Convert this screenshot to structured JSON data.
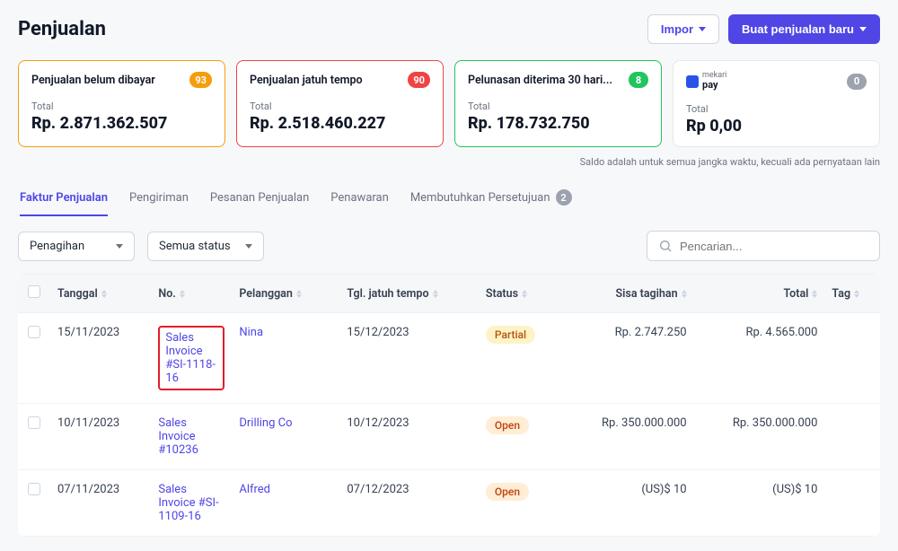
{
  "header": {
    "title": "Penjualan",
    "import_label": "Impor",
    "new_label": "Buat penjualan baru"
  },
  "cards": [
    {
      "title": "Penjualan belum dibayar",
      "badge": "93",
      "badge_bg": "#f59e0b",
      "total_label": "Total",
      "total": "Rp. 2.871.362.507",
      "border": "#f59e0b",
      "is_pay": false
    },
    {
      "title": "Penjualan jatuh tempo",
      "badge": "90",
      "badge_bg": "#ef4444",
      "total_label": "Total",
      "total": "Rp. 2.518.460.227",
      "border": "#ef4444",
      "is_pay": false
    },
    {
      "title": "Pelunasan diterima 30 hari...",
      "badge": "8",
      "badge_bg": "#22c55e",
      "total_label": "Total",
      "total": "Rp. 178.732.750",
      "border": "#22c55e",
      "is_pay": false
    },
    {
      "title": "mekari pay",
      "badge": "0",
      "badge_bg": "#9ca3af",
      "total_label": "Total",
      "total": "Rp 0,00",
      "border": "#e5e7eb",
      "is_pay": true
    }
  ],
  "footnote": "Saldo adalah untuk semua jangka waktu, kecuali ada pernyataan lain",
  "tabs": [
    {
      "label": "Faktur Penjualan",
      "active": true,
      "badge": null
    },
    {
      "label": "Pengiriman",
      "active": false,
      "badge": null
    },
    {
      "label": "Pesanan Penjualan",
      "active": false,
      "badge": null
    },
    {
      "label": "Penawaran",
      "active": false,
      "badge": null
    },
    {
      "label": "Membutuhkan Persetujuan",
      "active": false,
      "badge": "2"
    }
  ],
  "filters": {
    "filter1": "Penagihan",
    "filter2": "Semua status",
    "search_placeholder": "Pencarian..."
  },
  "columns": {
    "tanggal": "Tanggal",
    "no": "No.",
    "pelanggan": "Pelanggan",
    "jatuh_tempo": "Tgl. jatuh tempo",
    "status": "Status",
    "sisa": "Sisa tagihan",
    "total": "Total",
    "tag": "Tag"
  },
  "status_styles": {
    "Partial": {
      "bg": "#fef3c7",
      "color": "#b45309"
    },
    "Open": {
      "bg": "#ffedd5",
      "color": "#c2410c"
    }
  },
  "rows": [
    {
      "tanggal": "15/11/2023",
      "no": "Sales Invoice #SI-1118-16",
      "pelanggan": "Nina",
      "jatuh_tempo": "15/12/2023",
      "status": "Partial",
      "sisa": "Rp. 2.747.250",
      "total": "Rp. 4.565.000",
      "highlighted": true
    },
    {
      "tanggal": "10/11/2023",
      "no": "Sales Invoice #10236",
      "pelanggan": "Drilling Co",
      "jatuh_tempo": "10/12/2023",
      "status": "Open",
      "sisa": "Rp. 350.000.000",
      "total": "Rp. 350.000.000",
      "highlighted": false
    },
    {
      "tanggal": "07/11/2023",
      "no": "Sales Invoice #SI-1109-16",
      "pelanggan": "Alfred",
      "jatuh_tempo": "07/12/2023",
      "status": "Open",
      "sisa": "(US)$ 10",
      "total": "(US)$ 10",
      "highlighted": false
    }
  ]
}
